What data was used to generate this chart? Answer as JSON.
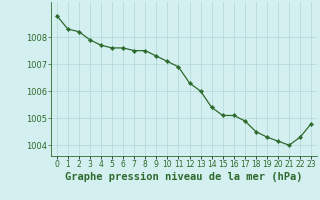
{
  "title": "Graphe pression niveau de la mer (hPa)",
  "x_labels": [
    "0",
    "1",
    "2",
    "3",
    "4",
    "5",
    "6",
    "7",
    "8",
    "9",
    "10",
    "11",
    "12",
    "13",
    "14",
    "15",
    "16",
    "17",
    "18",
    "19",
    "20",
    "21",
    "22",
    "23"
  ],
  "x_values": [
    0,
    1,
    2,
    3,
    4,
    5,
    6,
    7,
    8,
    9,
    10,
    11,
    12,
    13,
    14,
    15,
    16,
    17,
    18,
    19,
    20,
    21,
    22,
    23
  ],
  "y_values": [
    1008.8,
    1008.3,
    1008.2,
    1007.9,
    1007.7,
    1007.6,
    1007.6,
    1007.5,
    1007.5,
    1007.3,
    1007.1,
    1006.9,
    1006.3,
    1006.0,
    1005.4,
    1005.1,
    1005.1,
    1004.9,
    1004.5,
    1004.3,
    1004.15,
    1004.0,
    1004.3,
    1004.8
  ],
  "line_color": "#2d6a2d",
  "marker_color": "#2d6a2d",
  "bg_color": "#d4efef",
  "grid_color": "#afd8d8",
  "tick_label_color": "#2d6a2d",
  "title_color": "#2d6a2d",
  "ylim": [
    1003.6,
    1009.3
  ],
  "yticks": [
    1004,
    1005,
    1006,
    1007,
    1008
  ],
  "tick_fontsize": 6.0,
  "xlabel_fontsize": 7.5
}
